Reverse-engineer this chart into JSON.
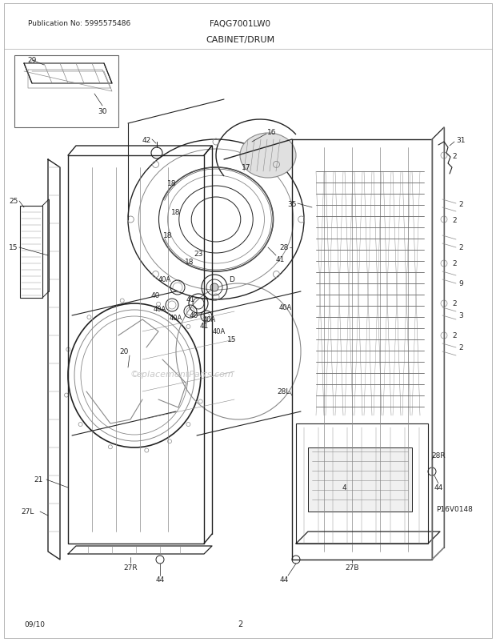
{
  "title": "CABINET/DRUM",
  "model": "FAQG7001LW0",
  "publication": "Publication No: 5995575486",
  "date": "09/10",
  "page": "2",
  "watermark": "eplacementParts.com",
  "diagram_id": "P16V0148",
  "bg_color": "#ffffff",
  "line_color": "#222222",
  "text_color": "#222222",
  "gray": "#888888",
  "light_gray": "#bbbbbb"
}
